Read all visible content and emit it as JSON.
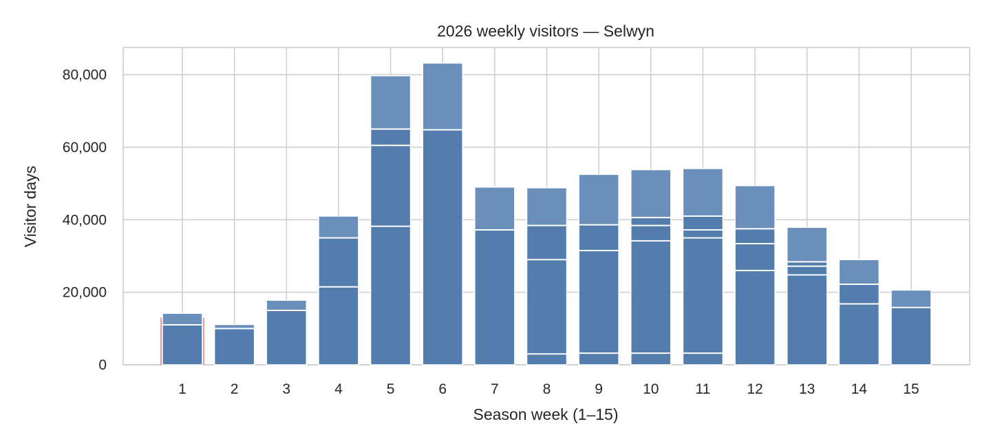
{
  "chart_data": {
    "type": "bar",
    "title": "2026 weekly visitors — Selwyn",
    "xlabel": "Season week (1–15)",
    "ylabel": "Visitor days",
    "categories": [
      "1",
      "2",
      "3",
      "4",
      "5",
      "6",
      "7",
      "8",
      "9",
      "10",
      "11",
      "12",
      "13",
      "14",
      "15"
    ],
    "values": [
      14200,
      11100,
      17800,
      41000,
      79700,
      83200,
      49000,
      48800,
      52500,
      53800,
      54100,
      49400,
      37900,
      29000,
      20600
    ],
    "segments": [
      [
        11000,
        14200
      ],
      [
        10000,
        11100
      ],
      [
        15000,
        17800
      ],
      [
        21500,
        35000,
        41000
      ],
      [
        38200,
        60500,
        65000,
        79700
      ],
      [
        64800,
        83200
      ],
      [
        37200,
        49000
      ],
      [
        3000,
        29000,
        38400,
        48800
      ],
      [
        3200,
        31500,
        38600,
        52500
      ],
      [
        3200,
        34200,
        38400,
        40600,
        53800
      ],
      [
        3200,
        35000,
        37200,
        41000,
        54100
      ],
      [
        26000,
        33400,
        37500,
        49400
      ],
      [
        24800,
        27200,
        28400,
        37900
      ],
      [
        16800,
        22200,
        29000
      ],
      [
        15800,
        20600
      ]
    ],
    "yticks": [
      "0",
      "20,000",
      "40,000",
      "60,000",
      "80,000"
    ],
    "ytick_values": [
      0,
      20000,
      40000,
      60000,
      80000
    ],
    "ylim": [
      0,
      87500
    ],
    "grid": true,
    "colors": {
      "bar_base": "#4a76a8",
      "bar_top": "#6a8fba",
      "divider": "#ffffff",
      "grid": "#cccccc",
      "highlight": "#e05a4f"
    },
    "highlight_category": "1"
  }
}
